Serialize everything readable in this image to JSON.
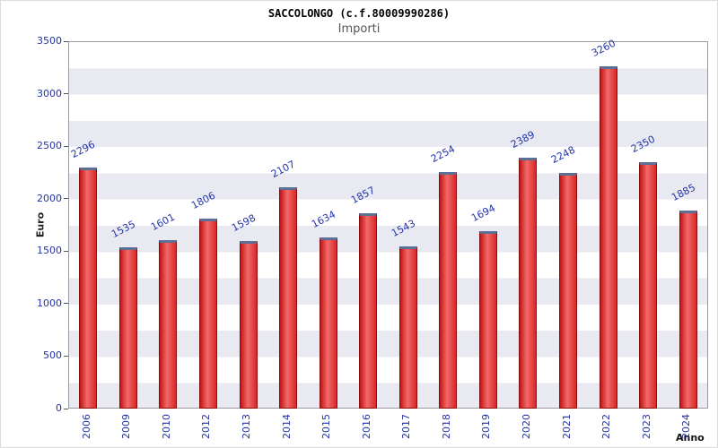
{
  "chart_data": {
    "type": "bar",
    "title": "SACCOLONGO (c.f.80009990286)",
    "subtitle": "Importi",
    "xlabel": "Anno",
    "ylabel": "Euro",
    "ylim": [
      0,
      3500
    ],
    "yticks": [
      0,
      500,
      1000,
      1500,
      2000,
      2500,
      3000,
      3500
    ],
    "categories": [
      "2006",
      "2009",
      "2010",
      "2012",
      "2013",
      "2014",
      "2015",
      "2016",
      "2017",
      "2018",
      "2019",
      "2020",
      "2021",
      "2022",
      "2023",
      "2024"
    ],
    "values": [
      2296,
      1535,
      1601,
      1806,
      1598,
      2107,
      1634,
      1857,
      1543,
      2254,
      1694,
      2389,
      2248,
      3260,
      2350,
      1885
    ],
    "grid": "horizontal-bands-250",
    "legend": "none",
    "value_labels": "above-bars-rotated",
    "colors": {
      "bar_fill": "#d92626",
      "bar_border": "#8c0d0d",
      "bar_top_cap": "#5c6f94",
      "axis_tick_label": "#2233aa",
      "value_label": "#2233aa",
      "band_gray": "#e9e9f1",
      "subtitle_text": "#555555",
      "title_text": "#000000"
    }
  }
}
